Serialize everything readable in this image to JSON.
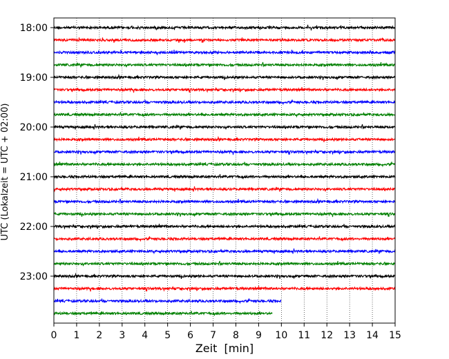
{
  "chart_data": {
    "type": "line",
    "title": "",
    "xlabel": "Zeit  [min]",
    "ylabel": "UTC (Lokalzeit = UTC + 02:00)",
    "xlim": [
      0,
      15
    ],
    "x_ticks": [
      0,
      1,
      2,
      3,
      4,
      5,
      6,
      7,
      8,
      9,
      10,
      11,
      12,
      13,
      14,
      15
    ],
    "x_grid": "dotted vertical lines at each minute",
    "y_tick_labels": [
      "18:00",
      "19:00",
      "20:00",
      "21:00",
      "22:00",
      "23:00"
    ],
    "trace_interval_min": 15,
    "color_cycle": [
      "#000000",
      "#ff0000",
      "#0000ff",
      "#008000"
    ],
    "traces": [
      {
        "start": "18:00",
        "duration_min": 15,
        "color": "#000000"
      },
      {
        "start": "18:15",
        "duration_min": 15,
        "color": "#ff0000"
      },
      {
        "start": "18:30",
        "duration_min": 15,
        "color": "#0000ff"
      },
      {
        "start": "18:45",
        "duration_min": 15,
        "color": "#008000"
      },
      {
        "start": "19:00",
        "duration_min": 15,
        "color": "#000000"
      },
      {
        "start": "19:15",
        "duration_min": 15,
        "color": "#ff0000"
      },
      {
        "start": "19:30",
        "duration_min": 15,
        "color": "#0000ff"
      },
      {
        "start": "19:45",
        "duration_min": 15,
        "color": "#008000"
      },
      {
        "start": "20:00",
        "duration_min": 15,
        "color": "#000000"
      },
      {
        "start": "20:15",
        "duration_min": 15,
        "color": "#ff0000"
      },
      {
        "start": "20:30",
        "duration_min": 15,
        "color": "#0000ff"
      },
      {
        "start": "20:45",
        "duration_min": 15,
        "color": "#008000"
      },
      {
        "start": "21:00",
        "duration_min": 15,
        "color": "#000000"
      },
      {
        "start": "21:15",
        "duration_min": 15,
        "color": "#ff0000"
      },
      {
        "start": "21:30",
        "duration_min": 15,
        "color": "#0000ff"
      },
      {
        "start": "21:45",
        "duration_min": 15,
        "color": "#008000"
      },
      {
        "start": "22:00",
        "duration_min": 15,
        "color": "#000000"
      },
      {
        "start": "22:15",
        "duration_min": 15,
        "color": "#ff0000"
      },
      {
        "start": "22:30",
        "duration_min": 15,
        "color": "#0000ff"
      },
      {
        "start": "22:45",
        "duration_min": 15,
        "color": "#008000"
      },
      {
        "start": "23:00",
        "duration_min": 15,
        "color": "#000000"
      },
      {
        "start": "23:15",
        "duration_min": 15,
        "color": "#ff0000"
      },
      {
        "start": "23:30",
        "duration_min": 10,
        "color": "#0000ff"
      },
      {
        "start": "23:45",
        "duration_min": 9.6,
        "color": "#008000"
      }
    ]
  }
}
